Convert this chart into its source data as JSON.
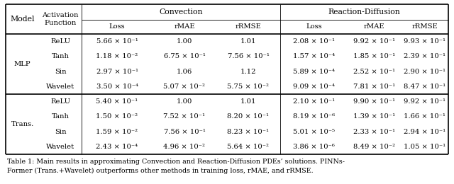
{
  "bg_color": "#ffffff",
  "text_color": "#000000",
  "line_color": "#000000",
  "fontsize": 7.2,
  "header_fontsize": 7.8,
  "caption_fontsize": 6.8,
  "font_family": "serif",
  "rows": [
    [
      "MLP",
      "ReLU",
      "5.66 × 10⁻¹",
      "1.00",
      "1.01",
      "2.08 × 10⁻¹",
      "9.92 × 10⁻¹",
      "9.93 × 10⁻¹"
    ],
    [
      "",
      "Tanh",
      "1.18 × 10⁻²",
      "6.75 × 10⁻¹",
      "7.56 × 10⁻¹",
      "1.57 × 10⁻⁴",
      "1.85 × 10⁻¹",
      "2.39 × 10⁻¹"
    ],
    [
      "",
      "Sin",
      "2.97 × 10⁻¹",
      "1.06",
      "1.12",
      "5.89 × 10⁻⁴",
      "2.52 × 10⁻¹",
      "2.90 × 10⁻¹"
    ],
    [
      "",
      "Wavelet",
      "3.50 × 10⁻⁴",
      "5.07 × 10⁻²",
      "5.75 × 10⁻²",
      "9.09 × 10⁻⁴",
      "7.81 × 10⁻¹",
      "8.47 × 10⁻¹"
    ],
    [
      "Trans.",
      "ReLU",
      "5.40 × 10⁻¹",
      "1.00",
      "1.01",
      "2.10 × 10⁻¹",
      "9.90 × 10⁻¹",
      "9.92 × 10⁻¹"
    ],
    [
      "",
      "Tanh",
      "1.50 × 10⁻²",
      "7.52 × 10⁻¹",
      "8.20 × 10⁻¹",
      "8.19 × 10⁻⁶",
      "1.39 × 10⁻¹",
      "1.66 × 10⁻¹"
    ],
    [
      "",
      "Sin",
      "1.59 × 10⁻²",
      "7.56 × 10⁻¹",
      "8.23 × 10⁻¹",
      "5.01 × 10⁻⁵",
      "2.33 × 10⁻¹",
      "2.94 × 10⁻¹"
    ],
    [
      "",
      "Wavelet",
      "2.43 × 10⁻⁴",
      "4.96 × 10⁻²",
      "5.64 × 10⁻²",
      "3.86 × 10⁻⁶",
      "8.49 × 10⁻²",
      "1.05 × 10⁻¹"
    ]
  ],
  "caption": "Table 1: Main results in approximating Convection and Reaction-Diffusion PDEs’ solutions. PINNs-\nFormer (Trans.+Wavelet) outperforms other methods in training loss, rMAE, and rRMSE."
}
